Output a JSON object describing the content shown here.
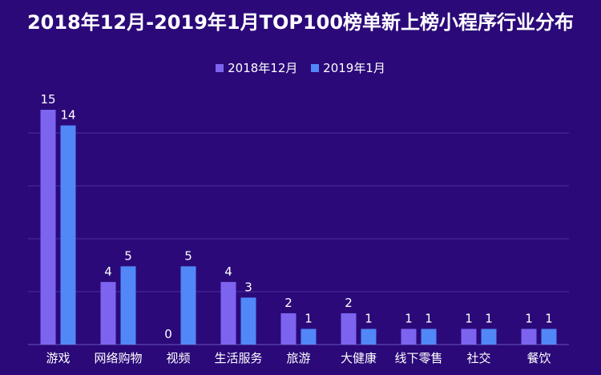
{
  "chart_data": {
    "type": "bar",
    "title": "2018年12月-2019年1月TOP100榜单新上榜小程序行业分布",
    "xlabel": "",
    "ylabel": "",
    "categories": [
      "游戏",
      "网络购物",
      "视频",
      "生活服务",
      "旅游",
      "大健康",
      "线下零售",
      "社交",
      "餐饮"
    ],
    "series": [
      {
        "name": "2018年12月",
        "color": "#7c64ef",
        "values": [
          15,
          4,
          0,
          4,
          2,
          2,
          1,
          1,
          1
        ]
      },
      {
        "name": "2019年1月",
        "color": "#5187f6",
        "values": [
          14,
          5,
          5,
          3,
          1,
          1,
          1,
          1,
          1
        ]
      }
    ],
    "ylim": [
      0,
      15
    ],
    "grid": true,
    "legend": "top-center"
  }
}
